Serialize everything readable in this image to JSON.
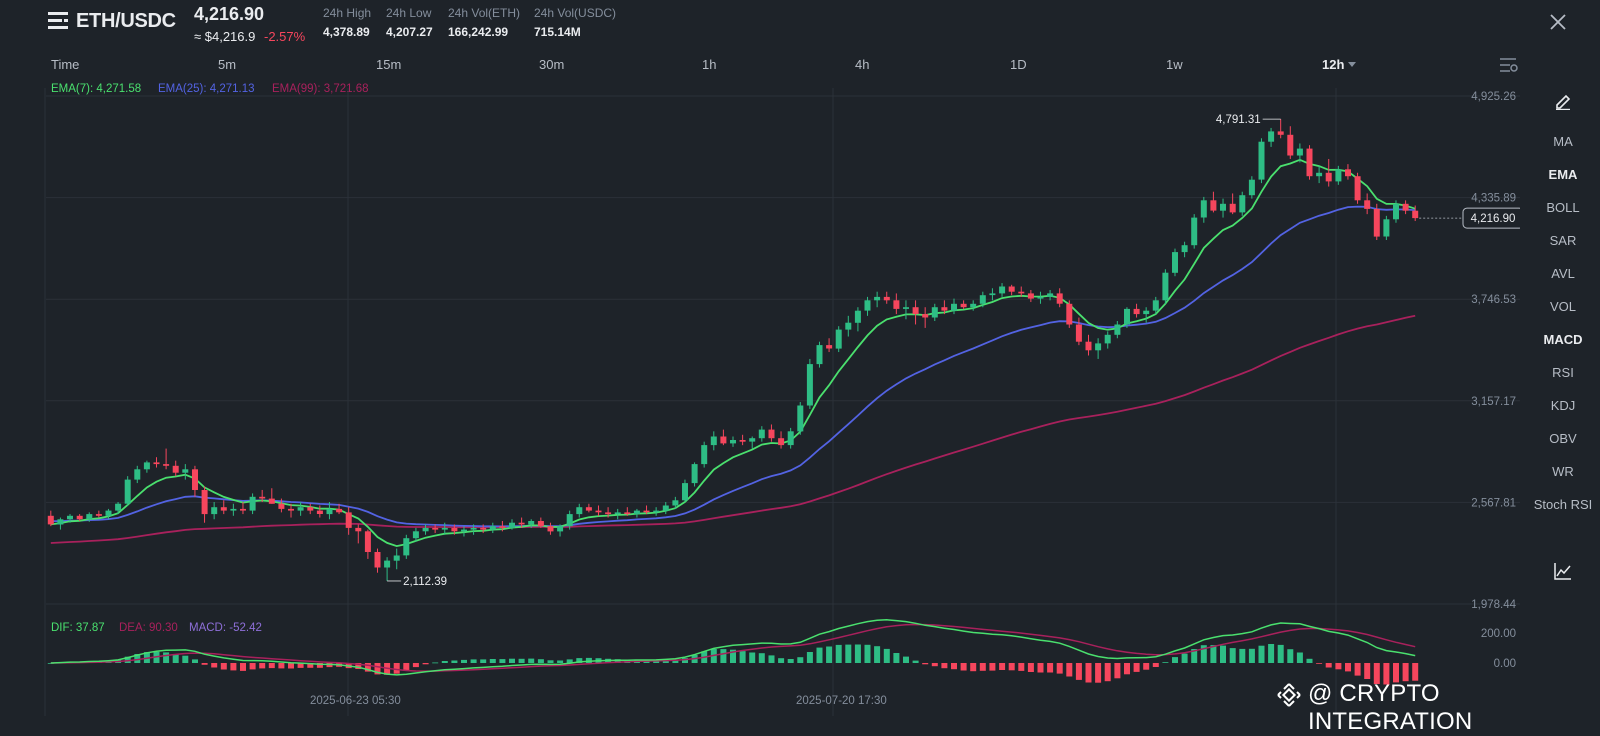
{
  "header": {
    "pair": "ETH/USDC",
    "price": "4,216.90",
    "usd_price": "≈ $4,216.9",
    "change": "-2.57%",
    "stats": [
      {
        "label": "24h High",
        "value": "4,378.89"
      },
      {
        "label": "24h Low",
        "value": "4,207.27"
      },
      {
        "label": "24h Vol(ETH)",
        "value": "166,242.99"
      },
      {
        "label": "24h Vol(USDC)",
        "value": "715.14M"
      }
    ]
  },
  "intervals": [
    "Time",
    "5m",
    "15m",
    "30m",
    "1h",
    "4h",
    "1D",
    "1w",
    "12h"
  ],
  "active_interval": "12h",
  "indicators": [
    "MA",
    "EMA",
    "BOLL",
    "SAR",
    "AVL",
    "VOL",
    "MACD",
    "RSI",
    "KDJ",
    "OBV",
    "WR",
    "Stoch RSI"
  ],
  "active_indicators": [
    "EMA",
    "MACD"
  ],
  "legend": {
    "ema7": "EMA(7): 4,271.58",
    "ema25": "EMA(25): 4,271.13",
    "ema99": "EMA(99): 3,721.68",
    "dif": "DIF: 37.87",
    "dea": "DEA: 90.30",
    "macd": "MACD: -52.42"
  },
  "watermark_text": "@ CRYPTO INTEGRATION",
  "colors": {
    "bg": "#1e2329",
    "up": "#2ebd85",
    "down": "#f6465d",
    "ema7": "#4ae06e",
    "ema25": "#5363e3",
    "ema99": "#a8215c",
    "dif": "#4ae06e",
    "dea": "#a8215c",
    "macd_label": "#8e6fd8",
    "grid": "#2b3139",
    "axis_text": "#848e9c"
  },
  "icons": [
    "menu-icon",
    "close-icon",
    "chart-settings-icon",
    "pencil-icon",
    "line-chart-icon",
    "binance-logo-icon"
  ],
  "chart_data": {
    "type": "candlestick",
    "interval": "12h",
    "price_axis": [
      "4,925.26",
      "4,335.89",
      "3,746.53",
      "3,157.17",
      "2,567.81",
      "1,978.44"
    ],
    "price_axis_values": [
      4925.26,
      4335.89,
      3746.53,
      3157.17,
      2567.81,
      1978.44
    ],
    "macd_axis": [
      "200.00",
      "0.00"
    ],
    "time_axis": [
      "2025-06-23 05:30",
      "2025-07-20 17:30"
    ],
    "current_price_label": "4,216.90",
    "high_label": "4,791.31",
    "low_label": "2,112.39",
    "candles": [
      [
        2490,
        2520,
        2430,
        2440
      ],
      [
        2440,
        2480,
        2410,
        2470
      ],
      [
        2470,
        2500,
        2450,
        2490
      ],
      [
        2490,
        2500,
        2460,
        2470
      ],
      [
        2470,
        2510,
        2455,
        2500
      ],
      [
        2500,
        2520,
        2480,
        2490
      ],
      [
        2490,
        2530,
        2470,
        2520
      ],
      [
        2520,
        2570,
        2500,
        2560
      ],
      [
        2560,
        2720,
        2550,
        2700
      ],
      [
        2700,
        2780,
        2680,
        2760
      ],
      [
        2760,
        2810,
        2740,
        2800
      ],
      [
        2800,
        2830,
        2770,
        2790
      ],
      [
        2790,
        2880,
        2760,
        2780
      ],
      [
        2780,
        2810,
        2720,
        2740
      ],
      [
        2740,
        2790,
        2700,
        2760
      ],
      [
        2760,
        2780,
        2600,
        2640
      ],
      [
        2640,
        2660,
        2450,
        2500
      ],
      [
        2500,
        2570,
        2470,
        2540
      ],
      [
        2540,
        2580,
        2500,
        2520
      ],
      [
        2520,
        2560,
        2490,
        2530
      ],
      [
        2530,
        2570,
        2500,
        2520
      ],
      [
        2520,
        2620,
        2500,
        2600
      ],
      [
        2600,
        2640,
        2570,
        2590
      ],
      [
        2590,
        2650,
        2560,
        2560
      ],
      [
        2560,
        2590,
        2510,
        2530
      ],
      [
        2530,
        2560,
        2480,
        2520
      ],
      [
        2520,
        2570,
        2490,
        2540
      ],
      [
        2540,
        2560,
        2500,
        2520
      ],
      [
        2520,
        2550,
        2480,
        2500
      ],
      [
        2500,
        2570,
        2470,
        2530
      ],
      [
        2530,
        2560,
        2500,
        2510
      ],
      [
        2510,
        2540,
        2380,
        2420
      ],
      [
        2420,
        2440,
        2330,
        2400
      ],
      [
        2400,
        2410,
        2240,
        2280
      ],
      [
        2280,
        2300,
        2160,
        2190
      ],
      [
        2190,
        2250,
        2112,
        2230
      ],
      [
        2230,
        2300,
        2180,
        2260
      ],
      [
        2260,
        2380,
        2240,
        2360
      ],
      [
        2360,
        2420,
        2340,
        2400
      ],
      [
        2400,
        2440,
        2380,
        2420
      ],
      [
        2420,
        2440,
        2390,
        2410
      ],
      [
        2410,
        2450,
        2380,
        2420
      ],
      [
        2420,
        2440,
        2380,
        2400
      ],
      [
        2400,
        2430,
        2370,
        2410
      ],
      [
        2410,
        2440,
        2380,
        2420
      ],
      [
        2420,
        2440,
        2390,
        2410
      ],
      [
        2410,
        2450,
        2390,
        2430
      ],
      [
        2430,
        2460,
        2400,
        2420
      ],
      [
        2420,
        2470,
        2410,
        2450
      ],
      [
        2450,
        2480,
        2420,
        2440
      ],
      [
        2440,
        2470,
        2420,
        2460
      ],
      [
        2460,
        2480,
        2420,
        2430
      ],
      [
        2430,
        2450,
        2380,
        2400
      ],
      [
        2400,
        2440,
        2370,
        2430
      ],
      [
        2430,
        2520,
        2410,
        2500
      ],
      [
        2500,
        2560,
        2480,
        2540
      ],
      [
        2540,
        2560,
        2510,
        2520
      ],
      [
        2520,
        2550,
        2490,
        2510
      ],
      [
        2510,
        2540,
        2480,
        2500
      ],
      [
        2500,
        2530,
        2470,
        2510
      ],
      [
        2510,
        2540,
        2490,
        2500
      ],
      [
        2500,
        2530,
        2480,
        2520
      ],
      [
        2520,
        2550,
        2500,
        2510
      ],
      [
        2510,
        2540,
        2490,
        2520
      ],
      [
        2520,
        2570,
        2500,
        2550
      ],
      [
        2550,
        2600,
        2530,
        2580
      ],
      [
        2580,
        2700,
        2570,
        2680
      ],
      [
        2680,
        2800,
        2660,
        2790
      ],
      [
        2790,
        2920,
        2770,
        2900
      ],
      [
        2900,
        2980,
        2870,
        2950
      ],
      [
        2950,
        2990,
        2900,
        2910
      ],
      [
        2910,
        2950,
        2890,
        2930
      ],
      [
        2930,
        2960,
        2900,
        2920
      ],
      [
        2920,
        2950,
        2880,
        2940
      ],
      [
        2940,
        3010,
        2920,
        2990
      ],
      [
        2990,
        3020,
        2920,
        2940
      ],
      [
        2940,
        2980,
        2880,
        2900
      ],
      [
        2900,
        3000,
        2880,
        2980
      ],
      [
        2980,
        3150,
        2960,
        3130
      ],
      [
        3130,
        3400,
        3110,
        3370
      ],
      [
        3370,
        3500,
        3350,
        3480
      ],
      [
        3480,
        3520,
        3440,
        3460
      ],
      [
        3460,
        3590,
        3440,
        3570
      ],
      [
        3570,
        3650,
        3530,
        3610
      ],
      [
        3610,
        3700,
        3560,
        3680
      ],
      [
        3680,
        3760,
        3650,
        3740
      ],
      [
        3740,
        3790,
        3700,
        3760
      ],
      [
        3760,
        3790,
        3720,
        3740
      ],
      [
        3740,
        3780,
        3660,
        3690
      ],
      [
        3690,
        3740,
        3630,
        3700
      ],
      [
        3700,
        3740,
        3600,
        3660
      ],
      [
        3660,
        3700,
        3580,
        3640
      ],
      [
        3640,
        3720,
        3620,
        3700
      ],
      [
        3700,
        3740,
        3660,
        3680
      ],
      [
        3680,
        3750,
        3660,
        3720
      ],
      [
        3720,
        3740,
        3690,
        3700
      ],
      [
        3700,
        3740,
        3680,
        3720
      ],
      [
        3720,
        3790,
        3700,
        3770
      ],
      [
        3770,
        3810,
        3740,
        3780
      ],
      [
        3780,
        3840,
        3760,
        3820
      ],
      [
        3820,
        3830,
        3770,
        3790
      ],
      [
        3790,
        3820,
        3760,
        3780
      ],
      [
        3780,
        3800,
        3730,
        3750
      ],
      [
        3750,
        3790,
        3720,
        3760
      ],
      [
        3760,
        3800,
        3740,
        3780
      ],
      [
        3780,
        3810,
        3700,
        3720
      ],
      [
        3720,
        3740,
        3580,
        3600
      ],
      [
        3600,
        3640,
        3480,
        3500
      ],
      [
        3500,
        3540,
        3420,
        3450
      ],
      [
        3450,
        3520,
        3400,
        3490
      ],
      [
        3490,
        3560,
        3460,
        3540
      ],
      [
        3540,
        3620,
        3520,
        3600
      ],
      [
        3600,
        3700,
        3580,
        3690
      ],
      [
        3690,
        3720,
        3640,
        3660
      ],
      [
        3660,
        3700,
        3610,
        3680
      ],
      [
        3680,
        3760,
        3660,
        3740
      ],
      [
        3740,
        3920,
        3720,
        3900
      ],
      [
        3900,
        4040,
        3880,
        4020
      ],
      [
        4020,
        4080,
        3990,
        4060
      ],
      [
        4060,
        4240,
        4040,
        4220
      ],
      [
        4220,
        4340,
        4190,
        4320
      ],
      [
        4320,
        4370,
        4250,
        4260
      ],
      [
        4260,
        4330,
        4220,
        4300
      ],
      [
        4300,
        4360,
        4240,
        4250
      ],
      [
        4250,
        4370,
        4230,
        4350
      ],
      [
        4350,
        4460,
        4330,
        4440
      ],
      [
        4440,
        4680,
        4420,
        4660
      ],
      [
        4660,
        4740,
        4630,
        4720
      ],
      [
        4720,
        4791,
        4680,
        4700
      ],
      [
        4700,
        4750,
        4560,
        4580
      ],
      [
        4580,
        4650,
        4540,
        4620
      ],
      [
        4620,
        4640,
        4440,
        4460
      ],
      [
        4460,
        4520,
        4420,
        4480
      ],
      [
        4480,
        4560,
        4400,
        4430
      ],
      [
        4430,
        4520,
        4410,
        4500
      ],
      [
        4500,
        4530,
        4440,
        4460
      ],
      [
        4460,
        4480,
        4300,
        4320
      ],
      [
        4320,
        4360,
        4240,
        4270
      ],
      [
        4270,
        4300,
        4090,
        4110
      ],
      [
        4110,
        4230,
        4090,
        4210
      ],
      [
        4210,
        4320,
        4190,
        4300
      ],
      [
        4300,
        4320,
        4240,
        4260
      ],
      [
        4260,
        4290,
        4200,
        4216.9
      ]
    ]
  }
}
